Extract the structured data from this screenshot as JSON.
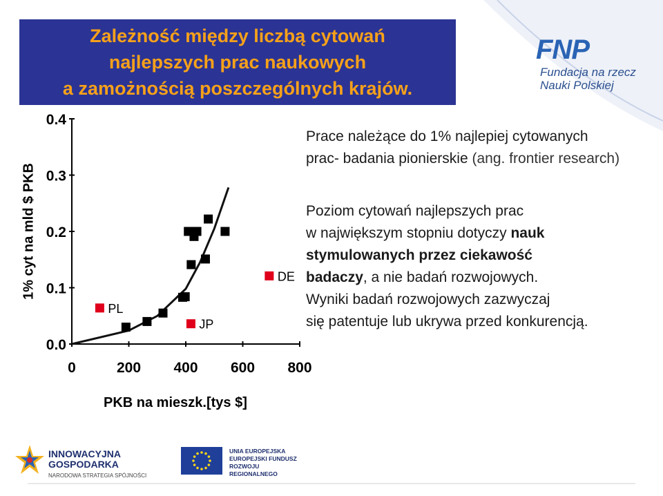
{
  "title_lines": [
    "Zależność między liczbą cytowań",
    "najlepszych prac naukowych",
    "a zamożnością poszczególnych krajów."
  ],
  "logo": {
    "letters": "FNP",
    "line1": "Fundacja na rzecz",
    "line2": "Nauki Polskiej"
  },
  "colors": {
    "title_bg": "#2b3494",
    "title_text": "#f7a11a",
    "marker": "#000000",
    "highlight_marker": "#e0001b",
    "fnp_blue": "#2a63b4"
  },
  "chart_data": {
    "type": "scatter",
    "xlabel": "PKB na mieszk.[tys $]",
    "ylabel": "1% cyt na mld $ PKB",
    "xlim": [
      0,
      800
    ],
    "ylim": [
      0,
      0.4
    ],
    "x_ticks": [
      "0",
      "200",
      "400",
      "600",
      "800"
    ],
    "y_ticks": [
      "0.0",
      "0.1",
      "0.2",
      "0.3",
      "0.4"
    ],
    "points": [
      {
        "x": 190,
        "y": 0.03
      },
      {
        "x": 264,
        "y": 0.04
      },
      {
        "x": 320,
        "y": 0.055
      },
      {
        "x": 389,
        "y": 0.083
      },
      {
        "x": 398,
        "y": 0.084
      },
      {
        "x": 409,
        "y": 0.2
      },
      {
        "x": 419,
        "y": 0.141
      },
      {
        "x": 429,
        "y": 0.191
      },
      {
        "x": 439,
        "y": 0.2
      },
      {
        "x": 469,
        "y": 0.151
      },
      {
        "x": 479,
        "y": 0.222
      },
      {
        "x": 538,
        "y": 0.2
      }
    ],
    "trend_curve": [
      {
        "x": 0,
        "y": 0.0
      },
      {
        "x": 200,
        "y": 0.024
      },
      {
        "x": 300,
        "y": 0.05
      },
      {
        "x": 400,
        "y": 0.098
      },
      {
        "x": 450,
        "y": 0.145
      },
      {
        "x": 500,
        "y": 0.205
      },
      {
        "x": 550,
        "y": 0.278
      }
    ],
    "labeled_points": [
      {
        "label": "PL",
        "x": 98,
        "y": 0.064
      },
      {
        "label": "JP",
        "x": 418,
        "y": 0.036
      },
      {
        "label": "DE",
        "x": 693,
        "y": 0.121
      }
    ]
  },
  "text1": {
    "line1": "Prace należące do 1% najlepiej cytowanych",
    "line2_main": "prac- badania pionierskie ",
    "line2_grey": "(ang. frontier research)"
  },
  "text2": {
    "line1": "Poziom cytowań najlepszych prac",
    "line2_plain": "w największym stopniu dotyczy ",
    "line2_bold": "nauk",
    "line3": "stymulowanych przez ciekawość",
    "line4_bold": "badaczy",
    "line4_plain": ", a nie badań rozwojowych.",
    "line5": "Wyniki badań rozwojowych zazwyczaj",
    "line6": "się patentuje lub ukrywa przed konkurencją."
  },
  "footer": {
    "ig_line1": "INNOWACYJNA",
    "ig_line2": "GOSPODARKA",
    "ig_line3": "NARODOWA STRATEGIA SPÓJNOŚCI",
    "eu_line1": "UNIA EUROPEJSKA",
    "eu_line2": "EUROPEJSKI FUNDUSZ",
    "eu_line3": "ROZWOJU REGIONALNEGO"
  }
}
